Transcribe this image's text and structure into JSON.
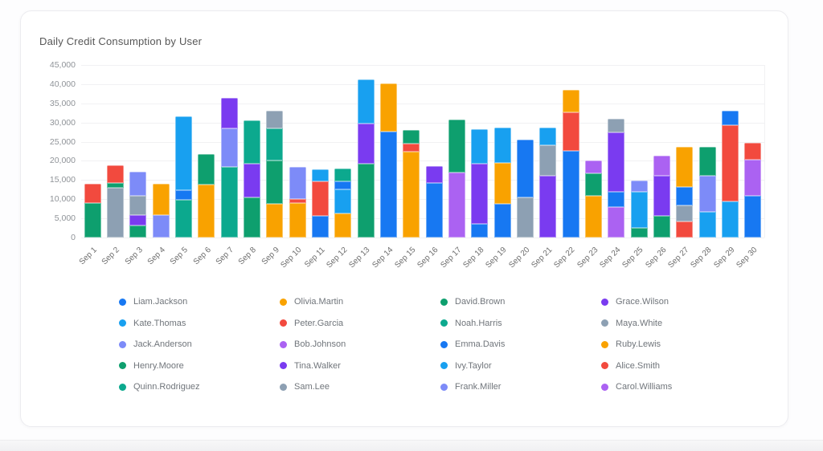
{
  "chart_data": {
    "type": "bar",
    "stacked": true,
    "title": "Daily Credit Consumption by User",
    "xlabel": "",
    "ylabel": "",
    "ylim": [
      0,
      45000
    ],
    "ytick_step": 5000,
    "ytick_labels": [
      "45,000",
      "40,000",
      "35,000",
      "30,000",
      "25,000",
      "20,000",
      "15,000",
      "10,000",
      "5,000",
      "0"
    ],
    "grid": "horizontal",
    "legend_position": "bottom",
    "palette": {
      "blue": "#1778f2",
      "sky": "#18a0f0",
      "periwinkle": "#7d8bf8",
      "green": "#0e9f6e",
      "teal": "#0ca98e",
      "orange": "#f9a200",
      "red": "#f24a3e",
      "lavender": "#ab62f2",
      "purple": "#7a3bf0",
      "gray": "#8da0b3"
    },
    "legend": {
      "columns": 4,
      "entries": [
        {
          "name": "Liam.Jackson",
          "color": "blue"
        },
        {
          "name": "Olivia.Martin",
          "color": "orange"
        },
        {
          "name": "David.Brown",
          "color": "green"
        },
        {
          "name": "Grace.Wilson",
          "color": "purple"
        },
        {
          "name": "Kate.Thomas",
          "color": "sky"
        },
        {
          "name": "Peter.Garcia",
          "color": "red"
        },
        {
          "name": "Noah.Harris",
          "color": "teal"
        },
        {
          "name": "Maya.White",
          "color": "gray"
        },
        {
          "name": "Jack.Anderson",
          "color": "periwinkle"
        },
        {
          "name": "Bob.Johnson",
          "color": "lavender"
        },
        {
          "name": "Emma.Davis",
          "color": "blue"
        },
        {
          "name": "Ruby.Lewis",
          "color": "orange"
        },
        {
          "name": "Henry.Moore",
          "color": "green"
        },
        {
          "name": "Tina.Walker",
          "color": "purple"
        },
        {
          "name": "Ivy.Taylor",
          "color": "sky"
        },
        {
          "name": "Alice.Smith",
          "color": "red"
        },
        {
          "name": "Quinn.Rodriguez",
          "color": "teal"
        },
        {
          "name": "Sam.Lee",
          "color": "gray"
        },
        {
          "name": "Frank.Miller",
          "color": "periwinkle"
        },
        {
          "name": "Carol.Williams",
          "color": "lavender"
        }
      ]
    },
    "categories": [
      "Sep 1",
      "Sep 2",
      "Sep 3",
      "Sep 4",
      "Sep 5",
      "Sep 6",
      "Sep 7",
      "Sep 8",
      "Sep 9",
      "Sep 10",
      "Sep 11",
      "Sep 12",
      "Sep 13",
      "Sep 14",
      "Sep 15",
      "Sep 16",
      "Sep 17",
      "Sep 18",
      "Sep 19",
      "Sep 20",
      "Sep 21",
      "Sep 22",
      "Sep 23",
      "Sep 24",
      "Sep 25",
      "Sep 26",
      "Sep 27",
      "Sep 28",
      "Sep 29",
      "Sep 30"
    ],
    "bars": [
      {
        "label": "Sep 1",
        "total": 14000,
        "segments": [
          {
            "user": "Henry.Moore",
            "color": "green",
            "value": 9000
          },
          {
            "user": "Peter.Garcia",
            "color": "red",
            "value": 5000
          }
        ]
      },
      {
        "label": "Sep 2",
        "total": 18800,
        "segments": [
          {
            "user": "Sam.Lee",
            "color": "gray",
            "value": 13000
          },
          {
            "user": "David.Brown",
            "color": "green",
            "value": 1300
          },
          {
            "user": "Alice.Smith",
            "color": "red",
            "value": 4500
          }
        ]
      },
      {
        "label": "Sep 3",
        "total": 17200,
        "segments": [
          {
            "user": "Henry.Moore",
            "color": "green",
            "value": 3100
          },
          {
            "user": "Tina.Walker",
            "color": "purple",
            "value": 2800
          },
          {
            "user": "Maya.White",
            "color": "gray",
            "value": 5000
          },
          {
            "user": "Jack.Anderson",
            "color": "periwinkle",
            "value": 6300
          }
        ]
      },
      {
        "label": "Sep 4",
        "total": 14000,
        "segments": [
          {
            "user": "Frank.Miller",
            "color": "periwinkle",
            "value": 5900
          },
          {
            "user": "Olivia.Martin",
            "color": "orange",
            "value": 8100
          }
        ]
      },
      {
        "label": "Sep 5",
        "total": 31500,
        "segments": [
          {
            "user": "Noah.Harris",
            "color": "teal",
            "value": 9800
          },
          {
            "user": "Emma.Davis",
            "color": "blue",
            "value": 2500
          },
          {
            "user": "Kate.Thomas",
            "color": "sky",
            "value": 19200
          }
        ]
      },
      {
        "label": "Sep 6",
        "total": 21800,
        "segments": [
          {
            "user": "Ruby.Lewis",
            "color": "orange",
            "value": 13800
          },
          {
            "user": "David.Brown",
            "color": "green",
            "value": 8000
          }
        ]
      },
      {
        "label": "Sep 7",
        "total": 36500,
        "segments": [
          {
            "user": "Quinn.Rodriguez",
            "color": "teal",
            "value": 18500
          },
          {
            "user": "Jack.Anderson",
            "color": "periwinkle",
            "value": 10100
          },
          {
            "user": "Grace.Wilson",
            "color": "purple",
            "value": 7900
          }
        ]
      },
      {
        "label": "Sep 8",
        "total": 30500,
        "segments": [
          {
            "user": "Henry.Moore",
            "color": "green",
            "value": 10400
          },
          {
            "user": "Tina.Walker",
            "color": "purple",
            "value": 8800
          },
          {
            "user": "Noah.Harris",
            "color": "teal",
            "value": 11300
          }
        ]
      },
      {
        "label": "Sep 9",
        "total": 33100,
        "segments": [
          {
            "user": "Olivia.Martin",
            "color": "orange",
            "value": 8800
          },
          {
            "user": "David.Brown",
            "color": "green",
            "value": 11400
          },
          {
            "user": "Quinn.Rodriguez",
            "color": "teal",
            "value": 8400
          },
          {
            "user": "Maya.White",
            "color": "gray",
            "value": 4500
          }
        ]
      },
      {
        "label": "Sep 10",
        "total": 18400,
        "segments": [
          {
            "user": "Ruby.Lewis",
            "color": "orange",
            "value": 9000
          },
          {
            "user": "Peter.Garcia",
            "color": "red",
            "value": 1000
          },
          {
            "user": "Frank.Miller",
            "color": "periwinkle",
            "value": 8400
          }
        ]
      },
      {
        "label": "Sep 11",
        "total": 17800,
        "segments": [
          {
            "user": "Liam.Jackson",
            "color": "blue",
            "value": 5600
          },
          {
            "user": "Alice.Smith",
            "color": "red",
            "value": 9100
          },
          {
            "user": "Ivy.Taylor",
            "color": "sky",
            "value": 3100
          }
        ]
      },
      {
        "label": "Sep 12",
        "total": 18000,
        "segments": [
          {
            "user": "Olivia.Martin",
            "color": "orange",
            "value": 6300
          },
          {
            "user": "Kate.Thomas",
            "color": "sky",
            "value": 6200
          },
          {
            "user": "Emma.Davis",
            "color": "blue",
            "value": 2100
          },
          {
            "user": "Noah.Harris",
            "color": "teal",
            "value": 3400
          }
        ]
      },
      {
        "label": "Sep 13",
        "total": 41100,
        "segments": [
          {
            "user": "David.Brown",
            "color": "green",
            "value": 19200
          },
          {
            "user": "Grace.Wilson",
            "color": "purple",
            "value": 10400
          },
          {
            "user": "Ivy.Taylor",
            "color": "sky",
            "value": 11500
          }
        ]
      },
      {
        "label": "Sep 14",
        "total": 40200,
        "segments": [
          {
            "user": "Emma.Davis",
            "color": "blue",
            "value": 27600
          },
          {
            "user": "Ruby.Lewis",
            "color": "orange",
            "value": 12600
          }
        ]
      },
      {
        "label": "Sep 15",
        "total": 28000,
        "segments": [
          {
            "user": "Olivia.Martin",
            "color": "orange",
            "value": 22400
          },
          {
            "user": "Alice.Smith",
            "color": "red",
            "value": 2100
          },
          {
            "user": "Henry.Moore",
            "color": "green",
            "value": 3500
          }
        ]
      },
      {
        "label": "Sep 16",
        "total": 18600,
        "segments": [
          {
            "user": "Liam.Jackson",
            "color": "blue",
            "value": 14300
          },
          {
            "user": "Tina.Walker",
            "color": "purple",
            "value": 4300
          }
        ]
      },
      {
        "label": "Sep 17",
        "total": 30800,
        "segments": [
          {
            "user": "Bob.Johnson",
            "color": "lavender",
            "value": 17000
          },
          {
            "user": "David.Brown",
            "color": "green",
            "value": 13800
          }
        ]
      },
      {
        "label": "Sep 18",
        "total": 28300,
        "segments": [
          {
            "user": "Emma.Davis",
            "color": "blue",
            "value": 3600
          },
          {
            "user": "Grace.Wilson",
            "color": "purple",
            "value": 15600
          },
          {
            "user": "Kate.Thomas",
            "color": "sky",
            "value": 9100
          }
        ]
      },
      {
        "label": "Sep 19",
        "total": 28600,
        "segments": [
          {
            "user": "Liam.Jackson",
            "color": "blue",
            "value": 8800
          },
          {
            "user": "Ruby.Lewis",
            "color": "orange",
            "value": 10600
          },
          {
            "user": "Ivy.Taylor",
            "color": "sky",
            "value": 9200
          }
        ]
      },
      {
        "label": "Sep 20",
        "total": 25500,
        "segments": [
          {
            "user": "Sam.Lee",
            "color": "gray",
            "value": 10400
          },
          {
            "user": "Emma.Davis",
            "color": "blue",
            "value": 15100
          }
        ]
      },
      {
        "label": "Sep 21",
        "total": 28700,
        "segments": [
          {
            "user": "Tina.Walker",
            "color": "purple",
            "value": 16100
          },
          {
            "user": "Maya.White",
            "color": "gray",
            "value": 8000
          },
          {
            "user": "Kate.Thomas",
            "color": "sky",
            "value": 4600
          }
        ]
      },
      {
        "label": "Sep 22",
        "total": 38300,
        "segments": [
          {
            "user": "Liam.Jackson",
            "color": "blue",
            "value": 22500
          },
          {
            "user": "Peter.Garcia",
            "color": "red",
            "value": 10000
          },
          {
            "user": "Olivia.Martin",
            "color": "orange",
            "value": 5800
          }
        ]
      },
      {
        "label": "Sep 23",
        "total": 20000,
        "segments": [
          {
            "user": "Ruby.Lewis",
            "color": "orange",
            "value": 10900
          },
          {
            "user": "Henry.Moore",
            "color": "green",
            "value": 5800
          },
          {
            "user": "Carol.Williams",
            "color": "lavender",
            "value": 3300
          }
        ]
      },
      {
        "label": "Sep 24",
        "total": 31000,
        "segments": [
          {
            "user": "Bob.Johnson",
            "color": "lavender",
            "value": 8000
          },
          {
            "user": "Liam.Jackson",
            "color": "blue",
            "value": 3900
          },
          {
            "user": "Grace.Wilson",
            "color": "purple",
            "value": 15500
          },
          {
            "user": "Sam.Lee",
            "color": "gray",
            "value": 3600
          }
        ]
      },
      {
        "label": "Sep 25",
        "total": 14800,
        "segments": [
          {
            "user": "David.Brown",
            "color": "green",
            "value": 2500
          },
          {
            "user": "Ivy.Taylor",
            "color": "sky",
            "value": 9400
          },
          {
            "user": "Jack.Anderson",
            "color": "periwinkle",
            "value": 2900
          }
        ]
      },
      {
        "label": "Sep 26",
        "total": 21400,
        "segments": [
          {
            "user": "Henry.Moore",
            "color": "green",
            "value": 5600
          },
          {
            "user": "Tina.Walker",
            "color": "purple",
            "value": 10500
          },
          {
            "user": "Carol.Williams",
            "color": "lavender",
            "value": 5300
          }
        ]
      },
      {
        "label": "Sep 27",
        "total": 23600,
        "segments": [
          {
            "user": "Alice.Smith",
            "color": "red",
            "value": 4200
          },
          {
            "user": "Maya.White",
            "color": "gray",
            "value": 4200
          },
          {
            "user": "Emma.Davis",
            "color": "blue",
            "value": 4800
          },
          {
            "user": "Olivia.Martin",
            "color": "orange",
            "value": 10400
          }
        ]
      },
      {
        "label": "Sep 28",
        "total": 23600,
        "segments": [
          {
            "user": "Kate.Thomas",
            "color": "sky",
            "value": 6700
          },
          {
            "user": "Frank.Miller",
            "color": "periwinkle",
            "value": 9400
          },
          {
            "user": "David.Brown",
            "color": "green",
            "value": 7500
          }
        ]
      },
      {
        "label": "Sep 29",
        "total": 33100,
        "segments": [
          {
            "user": "Ivy.Taylor",
            "color": "sky",
            "value": 9400
          },
          {
            "user": "Peter.Garcia",
            "color": "red",
            "value": 19900
          },
          {
            "user": "Liam.Jackson",
            "color": "blue",
            "value": 3800
          }
        ]
      },
      {
        "label": "Sep 30",
        "total": 24600,
        "segments": [
          {
            "user": "Emma.Davis",
            "color": "blue",
            "value": 10900
          },
          {
            "user": "Bob.Johnson",
            "color": "lavender",
            "value": 9400
          },
          {
            "user": "Alice.Smith",
            "color": "red",
            "value": 4300
          }
        ]
      }
    ]
  }
}
